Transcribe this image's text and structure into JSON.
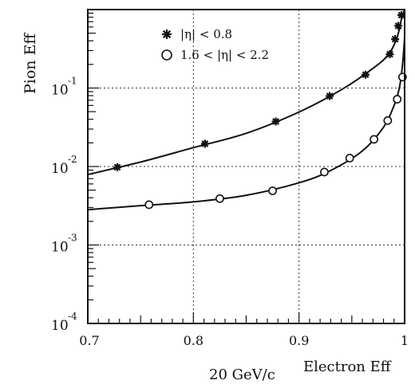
{
  "chart_data": {
    "type": "scatter",
    "xlabel": "Electron Eff",
    "ylabel": "Pion Eff",
    "footer": "20 GeV/c",
    "x_range": [
      0.7,
      1.0
    ],
    "y_range": [
      0.0001,
      1
    ],
    "y_scale": "log",
    "grid": true,
    "grid_style": "dotted",
    "legend_position": "top-center",
    "x_ticks": [
      {
        "v": 0.7,
        "label": "0.7"
      },
      {
        "v": 0.8,
        "label": "0.8"
      },
      {
        "v": 0.9,
        "label": "0.9"
      },
      {
        "v": 1.0,
        "label": "1"
      }
    ],
    "y_ticks": [
      {
        "v": 0.0001,
        "base": "10",
        "exp": "-4"
      },
      {
        "v": 0.001,
        "base": "10",
        "exp": "-3"
      },
      {
        "v": 0.01,
        "base": "10",
        "exp": "-2"
      },
      {
        "v": 0.1,
        "base": "10",
        "exp": "-1"
      }
    ],
    "series": [
      {
        "name": "|η| < 0.8",
        "marker": "star",
        "points": [
          [
            0.728,
            0.0098
          ],
          [
            0.811,
            0.0195
          ],
          [
            0.878,
            0.0375
          ],
          [
            0.929,
            0.079
          ],
          [
            0.963,
            0.148
          ],
          [
            0.986,
            0.27
          ],
          [
            0.991,
            0.42
          ],
          [
            0.994,
            0.62
          ],
          [
            0.997,
            0.85
          ]
        ],
        "fit": [
          [
            0.7,
            0.0079
          ],
          [
            0.75,
            0.0114
          ],
          [
            0.8,
            0.0174
          ],
          [
            0.85,
            0.0265
          ],
          [
            0.9,
            0.0495
          ],
          [
            0.94,
            0.095
          ],
          [
            0.97,
            0.178
          ],
          [
            0.985,
            0.27
          ],
          [
            0.993,
            0.45
          ],
          [
            0.997,
            0.75
          ],
          [
            1.0,
            1.0
          ]
        ]
      },
      {
        "name": "1.6 < |η| < 2.2",
        "marker": "circle",
        "points": [
          [
            0.758,
            0.00326
          ],
          [
            0.825,
            0.0039
          ],
          [
            0.875,
            0.0049
          ],
          [
            0.924,
            0.0085
          ],
          [
            0.948,
            0.0128
          ],
          [
            0.971,
            0.0222
          ],
          [
            0.984,
            0.0385
          ],
          [
            0.993,
            0.072
          ],
          [
            0.998,
            0.138
          ]
        ],
        "fit": [
          [
            0.7,
            0.00282
          ],
          [
            0.75,
            0.00317
          ],
          [
            0.8,
            0.00354
          ],
          [
            0.85,
            0.0043
          ],
          [
            0.9,
            0.0062
          ],
          [
            0.93,
            0.0089
          ],
          [
            0.96,
            0.0158
          ],
          [
            0.98,
            0.0316
          ],
          [
            0.99,
            0.06
          ],
          [
            0.995,
            0.1
          ],
          [
            0.998,
            0.2
          ],
          [
            1.0,
            0.45
          ]
        ]
      }
    ]
  }
}
